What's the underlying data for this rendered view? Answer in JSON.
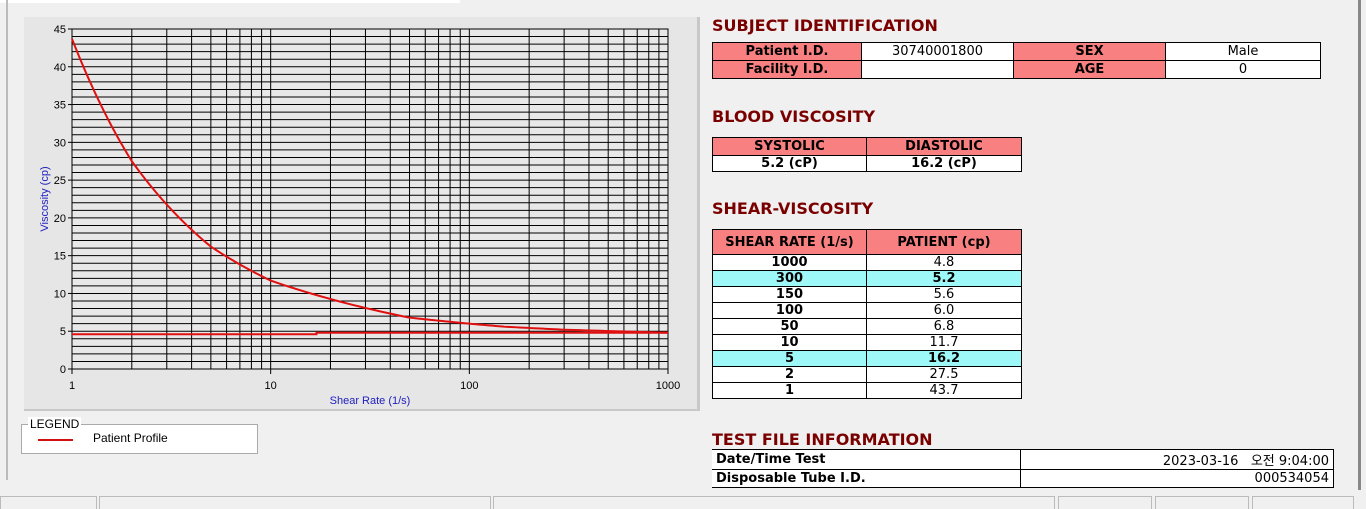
{
  "chart_data": {
    "type": "line",
    "xlabel": "Shear Rate (1/s)",
    "ylabel": "Viscosity (cp)",
    "x_scale": "log",
    "xlim": [
      1,
      1000
    ],
    "ylim": [
      0,
      45
    ],
    "x_ticks": [
      "1",
      "10",
      "100",
      "1000"
    ],
    "y_ticks": [
      "0",
      "5",
      "10",
      "15",
      "20",
      "25",
      "30",
      "35",
      "40",
      "45"
    ],
    "grid": true,
    "legend_position": "bottom-left",
    "series": [
      {
        "name": "Patient Profile",
        "color": "#e01010",
        "x": [
          1,
          2,
          5,
          10,
          50,
          100,
          150,
          300,
          1000
        ],
        "y": [
          43.7,
          27.5,
          16.2,
          11.7,
          6.8,
          6.0,
          5.6,
          5.2,
          4.8
        ]
      },
      {
        "color": "#e01010",
        "x": [
          1,
          17,
          17,
          1000
        ],
        "y": [
          4.6,
          4.6,
          4.8,
          4.8
        ]
      }
    ]
  },
  "legend": {
    "title": "LEGEND",
    "item": "Patient Profile"
  },
  "subject": {
    "title": "SUBJECT IDENTIFICATION",
    "patient_id_label": "Patient I.D.",
    "patient_id": "30740001800",
    "sex_label": "SEX",
    "sex": "Male",
    "facility_label": "Facility I.D.",
    "facility": "",
    "age_label": "AGE",
    "age": "0"
  },
  "blood": {
    "title": "BLOOD VISCOSITY",
    "systolic_label": "SYSTOLIC",
    "diastolic_label": "DIASTOLIC",
    "systolic": "5.2 (cP)",
    "diastolic": "16.2 (cP)"
  },
  "shear": {
    "title": "SHEAR-VISCOSITY",
    "col1": "SHEAR RATE (1/s)",
    "col2": "PATIENT (cp)",
    "rows": [
      [
        "1000",
        "4.8"
      ],
      [
        "300",
        "5.2"
      ],
      [
        "150",
        "5.6"
      ],
      [
        "100",
        "6.0"
      ],
      [
        "50",
        "6.8"
      ],
      [
        "10",
        "11.7"
      ],
      [
        "5",
        "16.2"
      ],
      [
        "2",
        "27.5"
      ],
      [
        "1",
        "43.7"
      ]
    ]
  },
  "testfile": {
    "title": "TEST FILE INFORMATION",
    "date_label": "Date/Time Test",
    "date": "2023-03-16   오전 9:04:00",
    "tube_label": "Disposable Tube I.D.",
    "tube": "000534054"
  }
}
